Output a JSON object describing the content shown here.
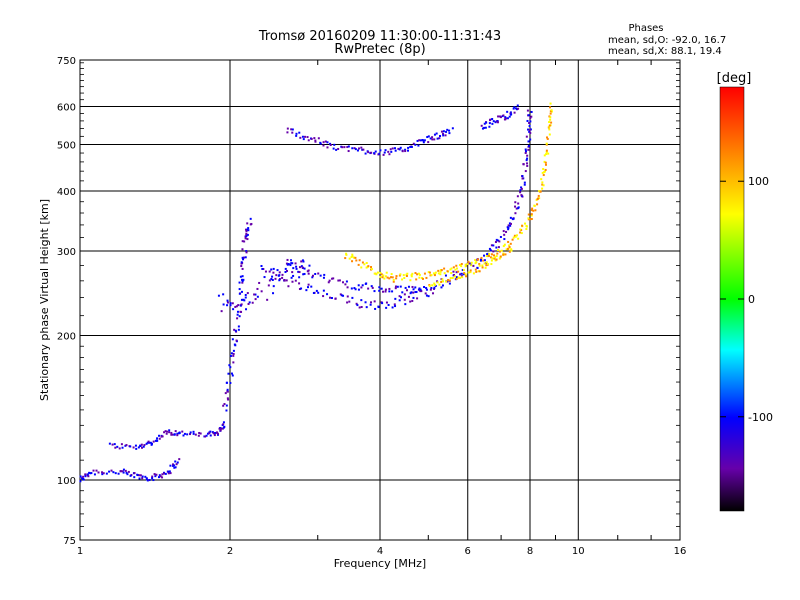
{
  "chart_data": {
    "type": "scatter",
    "title": "Tromsø 20160209 11:30:00-11:31:43",
    "subtitle": "RwPretec (8p)",
    "xlabel": "Frequency [MHz]",
    "ylabel": "Stationary phase Virtual Height [km]",
    "x_scale": "log",
    "y_scale": "log",
    "xlim": [
      1,
      16
    ],
    "ylim": [
      75,
      750
    ],
    "x_ticks": [
      1,
      2,
      4,
      6,
      8,
      10,
      16
    ],
    "y_ticks": [
      75,
      100,
      200,
      300,
      400,
      500,
      600,
      750
    ],
    "grid": true,
    "stats": {
      "title": "Phases",
      "line_o": "mean, sd,O: -92.0, 16.7",
      "line_x": "mean, sd,X:  88.1, 19.4"
    },
    "colorbar": {
      "label": "[deg]",
      "range": [
        -180,
        180
      ],
      "ticks": [
        100,
        0,
        -100
      ],
      "colors": [
        "#ff0000",
        "#ff8800",
        "#ffff00",
        "#00ff00",
        "#00ffff",
        "#0000ff",
        "#6600aa",
        "#000000"
      ]
    },
    "traces": [
      {
        "phase": -100,
        "spread": 0.012,
        "points": [
          [
            1.0,
            100
          ],
          [
            1.05,
            104
          ],
          [
            1.2,
            104
          ],
          [
            1.3,
            102
          ],
          [
            1.4,
            101
          ],
          [
            1.5,
            104
          ],
          [
            1.58,
            110
          ]
        ]
      },
      {
        "phase": -100,
        "spread": 0.01,
        "points": [
          [
            1.15,
            118
          ],
          [
            1.3,
            117
          ],
          [
            1.4,
            120
          ],
          [
            1.5,
            126
          ],
          [
            1.6,
            125
          ],
          [
            1.8,
            124
          ],
          [
            1.9,
            126
          ],
          [
            1.95,
            131
          ]
        ]
      },
      {
        "phase": -100,
        "spread": 0.022,
        "points": [
          [
            1.95,
            140
          ],
          [
            2.0,
            165
          ],
          [
            2.05,
            200
          ],
          [
            2.1,
            240
          ],
          [
            2.12,
            280
          ],
          [
            2.15,
            320
          ],
          [
            2.2,
            350
          ]
        ]
      },
      {
        "phase": -100,
        "spread": 0.04,
        "points": [
          [
            1.93,
            235
          ],
          [
            2.1,
            230
          ],
          [
            2.3,
            245
          ],
          [
            2.5,
            265
          ],
          [
            2.7,
            280
          ],
          [
            2.9,
            270
          ]
        ]
      },
      {
        "phase": -100,
        "spread": 0.02,
        "points": [
          [
            2.3,
            280
          ],
          [
            2.6,
            260
          ],
          [
            3.0,
            245
          ],
          [
            3.5,
            235
          ],
          [
            4.0,
            232
          ],
          [
            4.5,
            238
          ],
          [
            5.0,
            248
          ],
          [
            5.5,
            262
          ],
          [
            6.0,
            275
          ],
          [
            6.5,
            290
          ],
          [
            7.0,
            315
          ],
          [
            7.4,
            350
          ],
          [
            7.7,
            400
          ],
          [
            7.85,
            460
          ],
          [
            7.95,
            530
          ],
          [
            8.0,
            590
          ]
        ]
      },
      {
        "phase": -100,
        "spread": 0.015,
        "points": [
          [
            2.6,
            285
          ],
          [
            3.0,
            265
          ],
          [
            3.5,
            255
          ],
          [
            4.0,
            250
          ],
          [
            4.5,
            248
          ],
          [
            5.0,
            252
          ]
        ]
      },
      {
        "phase": -100,
        "spread": 0.012,
        "points": [
          [
            2.6,
            535
          ],
          [
            2.9,
            515
          ],
          [
            3.2,
            495
          ],
          [
            3.6,
            488
          ],
          [
            4.0,
            482
          ],
          [
            4.4,
            485
          ],
          [
            4.8,
            505
          ],
          [
            5.2,
            520
          ],
          [
            5.6,
            535
          ]
        ]
      },
      {
        "phase": -100,
        "spread": 0.012,
        "points": [
          [
            6.4,
            545
          ],
          [
            6.8,
            560
          ],
          [
            7.2,
            575
          ],
          [
            7.6,
            600
          ]
        ]
      },
      {
        "phase": 100,
        "spread": 0.015,
        "points": [
          [
            3.4,
            295
          ],
          [
            3.7,
            280
          ],
          [
            4.0,
            268
          ],
          [
            4.3,
            263
          ],
          [
            4.7,
            265
          ],
          [
            5.1,
            268
          ],
          [
            5.5,
            272
          ],
          [
            6.0,
            280
          ],
          [
            6.6,
            290
          ],
          [
            7.2,
            305
          ],
          [
            7.7,
            330
          ],
          [
            8.1,
            360
          ],
          [
            8.4,
            400
          ],
          [
            8.6,
            460
          ],
          [
            8.75,
            540
          ],
          [
            8.85,
            610
          ]
        ]
      },
      {
        "phase": 100,
        "spread": 0.01,
        "points": [
          [
            5.0,
            255
          ],
          [
            5.6,
            262
          ],
          [
            6.2,
            272
          ],
          [
            6.8,
            288
          ],
          [
            7.4,
            305
          ]
        ]
      }
    ]
  }
}
